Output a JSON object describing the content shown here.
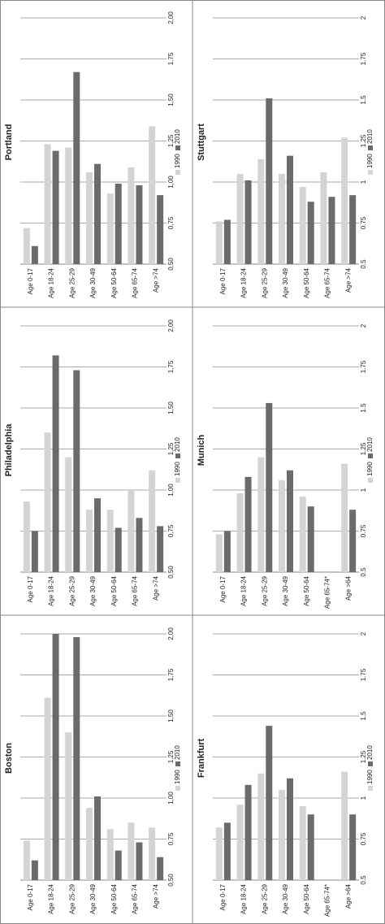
{
  "chart_data": [
    {
      "type": "bar",
      "title": "Portland",
      "categories": [
        "Age 0-17",
        "Age 18-24",
        "Age 25-29",
        "Age 30-49",
        "Age 50-64",
        "Age 65-74",
        "Age >74"
      ],
      "series": [
        {
          "name": "1990",
          "color": "#d4d4d4",
          "values": [
            0.72,
            1.23,
            1.21,
            1.06,
            0.93,
            1.09,
            1.34
          ]
        },
        {
          "name": "2010",
          "color": "#6b6b6b",
          "values": [
            0.61,
            1.19,
            1.67,
            1.11,
            0.99,
            0.98,
            0.92
          ]
        }
      ],
      "ylim": [
        0.5,
        2
      ],
      "yticks": [
        {
          "value": 0.5,
          "label": "0,50"
        },
        {
          "value": 0.75,
          "label": "0,75"
        },
        {
          "value": 1,
          "label": "1,00"
        },
        {
          "value": 1.25,
          "label": "1,25"
        },
        {
          "value": 1.5,
          "label": "1,50"
        },
        {
          "value": 1.75,
          "label": "1,75"
        },
        {
          "value": 2,
          "label": "2,00"
        }
      ],
      "grid": true
    },
    {
      "type": "bar",
      "title": "Stuttgart",
      "categories": [
        "Age 0-17",
        "Age 18-24",
        "Age 25-29",
        "Age 30-49",
        "Age 50-64",
        "Age 65-74",
        "Age >74"
      ],
      "series": [
        {
          "name": "1990",
          "color": "#d4d4d4",
          "values": [
            0.76,
            1.05,
            1.14,
            1.05,
            0.97,
            1.06,
            1.27
          ]
        },
        {
          "name": "2010",
          "color": "#6b6b6b",
          "values": [
            0.77,
            1.01,
            1.51,
            1.16,
            0.88,
            0.91,
            0.92
          ]
        }
      ],
      "ylim": [
        0.5,
        2
      ],
      "yticks": [
        0.5,
        0.75,
        1,
        1.25,
        1.5,
        1.75,
        2
      ],
      "grid": true
    },
    {
      "type": "bar",
      "title": "Philadelphia",
      "categories": [
        "Age 0-17",
        "Age 18-24",
        "Age 25-29",
        "Age 30-49",
        "Age 50-64",
        "Age 65-74",
        "Age >74"
      ],
      "series": [
        {
          "name": "1990",
          "color": "#d4d4d4",
          "values": [
            0.93,
            1.35,
            1.2,
            0.88,
            0.88,
            1.0,
            1.12
          ]
        },
        {
          "name": "2010",
          "color": "#6b6b6b",
          "values": [
            0.75,
            1.82,
            1.73,
            0.95,
            0.77,
            0.83,
            0.78
          ]
        }
      ],
      "ylim": [
        0.5,
        2
      ],
      "yticks": [
        {
          "value": 0.5,
          "label": "0,50"
        },
        {
          "value": 0.75,
          "label": "0,75"
        },
        {
          "value": 1,
          "label": "1,00"
        },
        {
          "value": 1.25,
          "label": "1,25"
        },
        {
          "value": 1.5,
          "label": "1,50"
        },
        {
          "value": 1.75,
          "label": "1,75"
        },
        {
          "value": 2,
          "label": "2,00"
        }
      ],
      "grid": true
    },
    {
      "type": "bar",
      "title": "Munich",
      "categories": [
        "Age 0-17",
        "Age 18-24",
        "Age 25-29",
        "Age 30-49",
        "Age 50-64",
        "Age 65-74*",
        "Age >64"
      ],
      "series": [
        {
          "name": "1990",
          "color": "#d4d4d4",
          "values": [
            0.73,
            0.98,
            1.2,
            1.06,
            0.96,
            null,
            1.16
          ]
        },
        {
          "name": "2010",
          "color": "#6b6b6b",
          "values": [
            0.75,
            1.08,
            1.53,
            1.12,
            0.9,
            null,
            0.88
          ]
        }
      ],
      "ylim": [
        0.5,
        2
      ],
      "yticks": [
        0.5,
        0.75,
        1,
        1.25,
        1.5,
        1.75,
        2
      ],
      "grid": true
    },
    {
      "type": "bar",
      "title": "Boston",
      "categories": [
        "Age 0-17",
        "Age 18-24",
        "Age 25-29",
        "Age 30-49",
        "Age 50-64",
        "Age 65-74",
        "Age >74"
      ],
      "series": [
        {
          "name": "1990",
          "color": "#d4d4d4",
          "values": [
            0.74,
            1.61,
            1.4,
            0.94,
            0.81,
            0.85,
            0.82
          ]
        },
        {
          "name": "2010",
          "color": "#6b6b6b",
          "values": [
            0.62,
            2.0,
            1.98,
            1.01,
            0.68,
            0.73,
            0.64
          ]
        }
      ],
      "ylim": [
        0.5,
        2
      ],
      "yticks": [
        {
          "value": 0.5,
          "label": "0,50"
        },
        {
          "value": 0.75,
          "label": "0,75"
        },
        {
          "value": 1,
          "label": "1,00"
        },
        {
          "value": 1.25,
          "label": "1,25"
        },
        {
          "value": 1.5,
          "label": "1,50"
        },
        {
          "value": 1.75,
          "label": "1,75"
        },
        {
          "value": 2,
          "label": "2,00"
        }
      ],
      "grid": true
    },
    {
      "type": "bar",
      "title": "Frankfurt",
      "categories": [
        "Age 0-17",
        "Age 18-24",
        "Age 25-29",
        "Age 30-49",
        "Age 50-64",
        "Age 65-74*",
        "Age >64"
      ],
      "series": [
        {
          "name": "1990",
          "color": "#d4d4d4",
          "values": [
            0.82,
            0.96,
            1.15,
            1.05,
            0.95,
            null,
            1.16
          ]
        },
        {
          "name": "2010",
          "color": "#6b6b6b",
          "values": [
            0.85,
            1.08,
            1.44,
            1.12,
            0.9,
            null,
            0.9
          ]
        }
      ],
      "ylim": [
        0.5,
        2
      ],
      "yticks": [
        0.5,
        0.75,
        1,
        1.25,
        1.5,
        1.75,
        2
      ],
      "grid": true
    }
  ]
}
